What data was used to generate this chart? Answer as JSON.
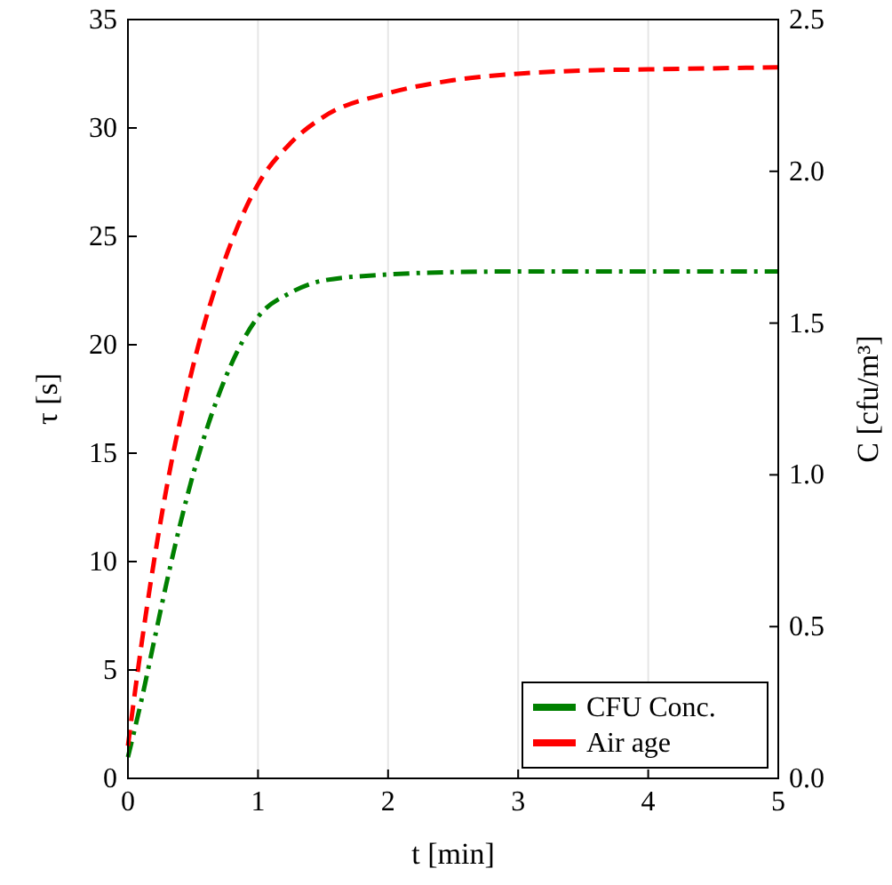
{
  "chart_data": {
    "type": "line",
    "xlabel": "t [min]",
    "ylabel": "τ [s]",
    "y2label": "C [cfu/m³]",
    "xlim": [
      0,
      5
    ],
    "xticks": [
      0,
      1,
      2,
      3,
      4,
      5
    ],
    "ylim": [
      0,
      35
    ],
    "yticks": [
      0,
      5,
      10,
      15,
      20,
      25,
      30,
      35
    ],
    "y2lim": [
      0,
      2.5
    ],
    "y2ticks": [
      {
        "value": 0,
        "label": "0.0"
      },
      {
        "value": 0.5,
        "label": "0.5"
      },
      {
        "value": 1,
        "label": "1.0"
      },
      {
        "value": 1.5,
        "label": "1.5"
      },
      {
        "value": 2,
        "label": "2.0"
      },
      {
        "value": 2.5,
        "label": "2.5"
      }
    ],
    "grid": "x",
    "legend": "bottom right",
    "series": [
      {
        "name": "CFU Conc.",
        "color": "#008000",
        "axis": "y2",
        "line_style": "dashdot",
        "x": [
          0,
          0.1,
          0.2,
          0.3,
          0.5,
          0.75,
          1,
          1.25,
          1.5,
          2,
          2.5,
          3,
          4,
          5
        ],
        "values": [
          0.07,
          0.25,
          0.45,
          0.65,
          1.0,
          1.32,
          1.52,
          1.6,
          1.64,
          1.66,
          1.668,
          1.67,
          1.67,
          1.67
        ]
      },
      {
        "name": "Air age",
        "color": "#ff0000",
        "line_style": "dashed",
        "x": [
          0,
          0.1,
          0.2,
          0.3,
          0.5,
          0.75,
          1,
          1.25,
          1.5,
          2,
          2.5,
          3,
          3.5,
          4,
          4.5,
          5
        ],
        "values": [
          1.5,
          6,
          10,
          13.5,
          19,
          24,
          27.4,
          29.3,
          30.5,
          31.6,
          32.2,
          32.5,
          32.65,
          32.7,
          32.75,
          32.8
        ]
      }
    ]
  }
}
